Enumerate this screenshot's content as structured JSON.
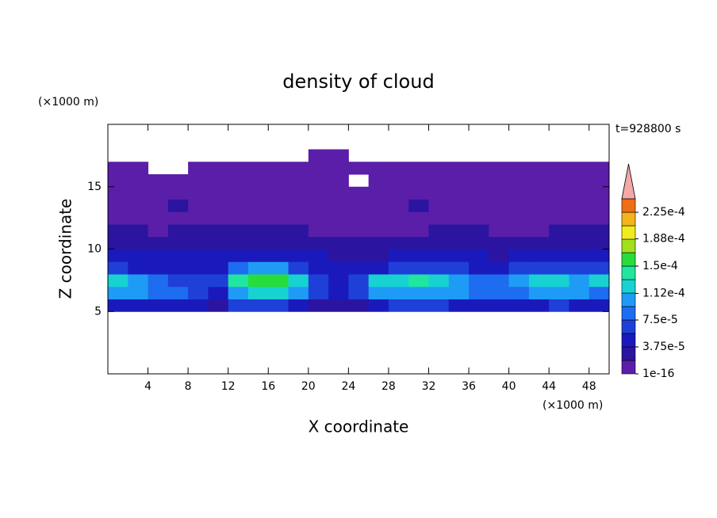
{
  "chart_data": {
    "type": "contour",
    "title": "density of cloud",
    "x_label": "X coordinate",
    "y_label": "Z coordinate",
    "x_unit": "(×1000 m)",
    "y_unit": "(×1000 m)",
    "time_label": "t=928800 s",
    "xlim": [
      0,
      50
    ],
    "ylim": [
      0,
      20
    ],
    "xticks": [
      4,
      8,
      12,
      16,
      20,
      24,
      28,
      32,
      36,
      40,
      44,
      48
    ],
    "yticks": [
      5,
      10,
      15
    ],
    "x": [
      1,
      3,
      5,
      7,
      9,
      11,
      13,
      15,
      17,
      19,
      21,
      23,
      25,
      27,
      29,
      31,
      33,
      35,
      37,
      39,
      41,
      43,
      45,
      47,
      49
    ],
    "y": [
      5.5,
      6.5,
      7.5,
      8.5,
      9.5,
      10.5,
      11.5,
      12.5,
      13.5,
      14.5,
      15.5,
      16.5,
      17.5
    ],
    "z": [
      [
        5e-05,
        5e-05,
        5e-05,
        5e-05,
        4e-05,
        3e-05,
        6e-05,
        6e-05,
        6e-05,
        5e-05,
        3e-05,
        2e-05,
        3e-05,
        5e-05,
        6e-05,
        6e-05,
        6e-05,
        5e-05,
        5e-05,
        4e-05,
        5e-05,
        5e-05,
        6e-05,
        5e-05,
        4e-05
      ],
      [
        0.00011,
        0.0001,
        9e-05,
        8e-05,
        7e-05,
        5e-05,
        0.00011,
        0.00012,
        0.00012,
        0.0001,
        6e-05,
        4e-05,
        6e-05,
        0.0001,
        0.00011,
        0.00011,
        0.00011,
        0.0001,
        9e-05,
        8e-05,
        9e-05,
        0.0001,
        0.00011,
        0.0001,
        9e-05
      ],
      [
        0.00012,
        0.00011,
        9e-05,
        7e-05,
        6e-05,
        7e-05,
        0.00014,
        0.00016,
        0.00016,
        0.00013,
        7e-05,
        5e-05,
        7e-05,
        0.00012,
        0.00013,
        0.000135,
        0.00012,
        0.00011,
        9e-05,
        8e-05,
        0.0001,
        0.000115,
        0.000125,
        0.00011,
        0.00012
      ],
      [
        6e-05,
        5e-05,
        5e-05,
        4e-05,
        4e-05,
        5e-05,
        8e-05,
        0.00011,
        0.0001,
        6e-05,
        5e-05,
        4e-05,
        4e-05,
        5e-05,
        6e-05,
        6e-05,
        7e-05,
        7e-05,
        5e-05,
        4e-05,
        6e-05,
        7e-05,
        6e-05,
        7e-05,
        7e-05
      ],
      [
        4e-05,
        4e-05,
        4e-05,
        4e-05,
        4.5e-05,
        5e-05,
        5e-05,
        5e-05,
        4.5e-05,
        4e-05,
        4e-05,
        3.5e-05,
        3e-05,
        3.5e-05,
        4e-05,
        4e-05,
        4.5e-05,
        5e-05,
        4e-05,
        3.5e-05,
        4e-05,
        5e-05,
        5e-05,
        5.5e-05,
        5.5e-05
      ],
      [
        3e-05,
        2.5e-05,
        3e-05,
        3e-05,
        3.5e-05,
        3e-05,
        3e-05,
        3e-05,
        3e-05,
        2.5e-05,
        2.5e-05,
        2e-05,
        2e-05,
        2.5e-05,
        2.5e-05,
        2.5e-05,
        3e-05,
        3e-05,
        2.5e-05,
        2e-05,
        2.5e-05,
        3e-05,
        3e-05,
        3.5e-05,
        3.5e-05
      ],
      [
        2e-05,
        2e-05,
        1.5e-05,
        2e-05,
        2e-05,
        2e-05,
        2e-05,
        2e-05,
        2e-05,
        2e-05,
        1.5e-05,
        1.5e-05,
        1.5e-05,
        1e-05,
        1.5e-05,
        1.5e-05,
        2e-05,
        2e-05,
        2e-05,
        1.5e-05,
        1e-05,
        1.5e-05,
        2e-05,
        2e-05,
        2e-05
      ],
      [
        1.5e-05,
        1e-05,
        1e-05,
        1.5e-05,
        1e-05,
        1.5e-05,
        1e-05,
        1e-05,
        1.5e-05,
        1e-05,
        1e-05,
        1e-05,
        1e-05,
        1e-05,
        1e-05,
        1e-05,
        1.5e-05,
        1e-05,
        1e-05,
        1e-05,
        1e-05,
        1.5e-05,
        1e-05,
        1e-05,
        1.5e-05
      ],
      [
        8e-06,
        8e-06,
        8e-06,
        2e-05,
        8e-06,
        8e-06,
        8e-06,
        8e-06,
        8e-06,
        8e-06,
        8e-06,
        8e-06,
        8e-06,
        8e-06,
        8e-06,
        2e-05,
        8e-06,
        8e-06,
        8e-06,
        8e-06,
        8e-06,
        8e-06,
        8e-06,
        8e-06,
        8e-06
      ],
      [
        5e-06,
        5e-06,
        5e-06,
        5e-06,
        5e-06,
        5e-06,
        5e-06,
        5e-06,
        5e-06,
        5e-06,
        5e-06,
        5e-06,
        5e-06,
        5e-06,
        5e-06,
        5e-06,
        5e-06,
        5e-06,
        5e-06,
        5e-06,
        5e-06,
        5e-06,
        5e-06,
        5e-06,
        5e-06
      ],
      [
        3e-06,
        3e-06,
        3e-06,
        3e-06,
        3e-06,
        3e-06,
        3e-06,
        3e-06,
        3e-06,
        3e-06,
        3e-06,
        3e-06,
        null,
        3e-06,
        3e-06,
        3e-06,
        3e-06,
        3e-06,
        3e-06,
        3e-06,
        3e-06,
        3e-06,
        3e-06,
        3e-06,
        3e-06
      ],
      [
        2e-06,
        2e-06,
        null,
        null,
        2e-06,
        2e-06,
        2e-06,
        2e-06,
        2e-06,
        2e-06,
        2e-06,
        2e-06,
        2e-06,
        2e-06,
        2e-06,
        2e-06,
        2e-06,
        2e-06,
        2e-06,
        2e-06,
        2e-06,
        2e-06,
        2e-06,
        2e-06,
        2e-06
      ],
      [
        null,
        null,
        null,
        null,
        null,
        null,
        null,
        null,
        null,
        null,
        1e-06,
        1e-06,
        null,
        null,
        null,
        null,
        null,
        null,
        null,
        null,
        null,
        null,
        null,
        null,
        null
      ]
    ],
    "levels": [
      1e-16,
      1.875e-05,
      3.75e-05,
      5.625e-05,
      7.5e-05,
      9.375e-05,
      0.0001125,
      0.00013125,
      0.00015,
      0.00016875,
      0.0001875,
      0.00020625,
      0.000225
    ],
    "colors": [
      "#5a1ea8",
      "#2a14a0",
      "#1a1abc",
      "#1e40d8",
      "#1e6cf0",
      "#1e9cf5",
      "#18d2d2",
      "#20e6a0",
      "#28dc3c",
      "#a0e01e",
      "#f0ec1e",
      "#f5b41e",
      "#f06e14"
    ],
    "over_color": "#f4a8a8",
    "colorbar_ticks": [
      {
        "value": 1e-16,
        "label": "1e-16"
      },
      {
        "value": 3.75e-05,
        "label": "3.75e-5"
      },
      {
        "value": 7.5e-05,
        "label": "7.5e-5"
      },
      {
        "value": 0.000112,
        "label": "1.12e-4"
      },
      {
        "value": 0.00015,
        "label": "1.5e-4"
      },
      {
        "value": 0.000188,
        "label": "1.88e-4"
      },
      {
        "value": 0.000225,
        "label": "2.25e-4"
      }
    ]
  }
}
